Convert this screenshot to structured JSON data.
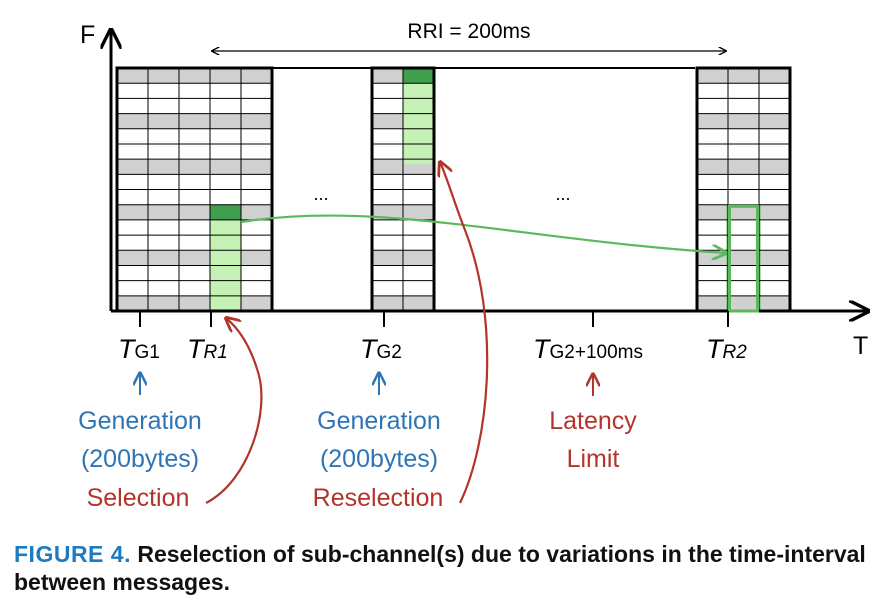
{
  "axes": {
    "y_label": "F",
    "x_label": "T"
  },
  "rri": {
    "label": "RRI = 200ms"
  },
  "ellipsis": [
    "...",
    "..."
  ],
  "time_markers": [
    {
      "id": "tg1",
      "main": "T",
      "sub": "G1",
      "sub_italic": false
    },
    {
      "id": "tr1",
      "main": "T",
      "sub": "R1",
      "sub_italic": true
    },
    {
      "id": "tg2",
      "main": "T",
      "sub": "G2",
      "sub_italic": false
    },
    {
      "id": "tg2plus",
      "main": "T",
      "sub": "G2+100ms",
      "sub_italic": false
    },
    {
      "id": "tr2",
      "main": "T",
      "sub": "R2",
      "sub_italic": true
    }
  ],
  "annotations": {
    "gen1": {
      "line1": "Generation",
      "line2": "(200bytes)"
    },
    "sel1": {
      "text": "Selection"
    },
    "gen2": {
      "line1": "Generation",
      "line2": "(200bytes)"
    },
    "resel": {
      "text": "Reselection"
    },
    "latency": {
      "line1": "Latency",
      "line2": "Limit"
    }
  },
  "colors": {
    "blue": "#2f75b5",
    "red": "#b2342b",
    "green": "#5cb85c",
    "green_dark": "#3f9f4f",
    "green_light": "#c6f1b4",
    "grid_gray": "#d0d0d0"
  },
  "caption": {
    "label": "FIGURE 4.",
    "text": "Reselection of sub-channel(s) due to variations in the time-interval between messages."
  }
}
